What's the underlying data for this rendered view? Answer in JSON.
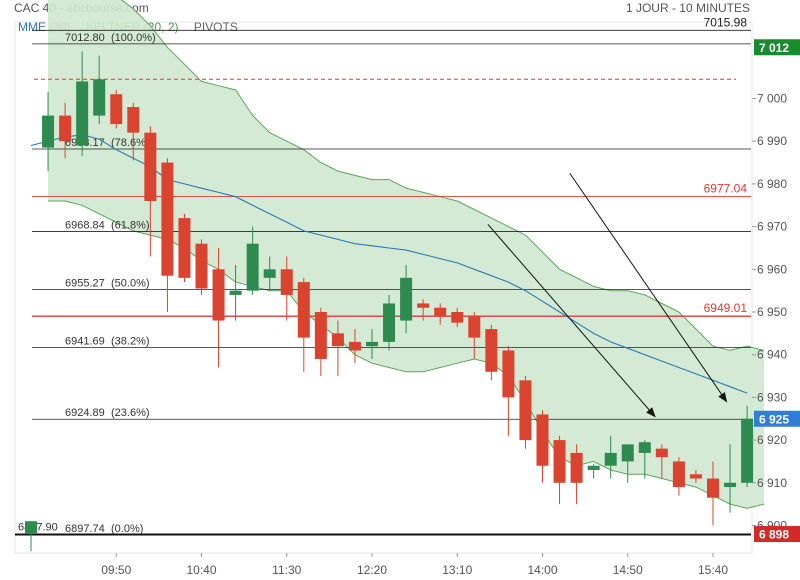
{
  "header": {
    "title": "CAC 40 - abcbourse.com",
    "period": "1 JOUR - 10 MINUTES"
  },
  "legend": {
    "mme": "MME (30)",
    "keltner": "KELTNER (20, 2)",
    "pivots": "PIVOTS"
  },
  "colors": {
    "up": "#2e8b4f",
    "down": "#d9432f",
    "keltner_fill": "#cfe8cf",
    "keltner_line": "#5aa55a",
    "mme_line": "#2b7bb0",
    "level_red": "#e03a3a",
    "badge_green": "#1a8a2e",
    "badge_blue": "#2f7fd6",
    "badge_red": "#d02a2a"
  },
  "chart_data": {
    "type": "candlestick",
    "x_tick_labels": [
      "09:50",
      "10:40",
      "11:30",
      "12:20",
      "13:10",
      "14:00",
      "14:50",
      "15:40"
    ],
    "y_ticks": [
      6900,
      6910,
      6920,
      6930,
      6940,
      6950,
      6960,
      6970,
      6980,
      6990,
      7000
    ],
    "y_tick_labels": [
      "6 900",
      "6 910",
      "6 920",
      "6 930",
      "6 940",
      "6 950",
      "6 960",
      "6 970",
      "6 980",
      "6 990",
      "7 000"
    ],
    "ylim": [
      6896,
      7020
    ],
    "candles": [
      {
        "o": 6898.2,
        "h": 6901.0,
        "l": 6894.0,
        "c": 6901.0
      },
      {
        "o": 6988.5,
        "h": 7001.5,
        "l": 6983.0,
        "c": 6996.0
      },
      {
        "o": 6996.0,
        "h": 6999.0,
        "l": 6986.0,
        "c": 6990.0
      },
      {
        "o": 6989.0,
        "h": 7011.0,
        "l": 6986.5,
        "c": 7004.0
      },
      {
        "o": 6996.0,
        "h": 7010.0,
        "l": 6994.0,
        "c": 7004.5
      },
      {
        "o": 7001.0,
        "h": 7002.0,
        "l": 6993.0,
        "c": 6994.0
      },
      {
        "o": 6998.0,
        "h": 6999.0,
        "l": 6985.5,
        "c": 6992.0
      },
      {
        "o": 6992.0,
        "h": 6993.5,
        "l": 6963.0,
        "c": 6976.0
      },
      {
        "o": 6985.0,
        "h": 6986.0,
        "l": 6950.0,
        "c": 6958.5
      },
      {
        "o": 6972.0,
        "h": 6973.0,
        "l": 6957.0,
        "c": 6958.0
      },
      {
        "o": 6966.0,
        "h": 6967.0,
        "l": 6954.0,
        "c": 6955.5
      },
      {
        "o": 6960.0,
        "h": 6965.0,
        "l": 6937.0,
        "c": 6948.0
      },
      {
        "o": 6954.0,
        "h": 6961.0,
        "l": 6948.0,
        "c": 6955.0
      },
      {
        "o": 6955.0,
        "h": 6970.0,
        "l": 6954.0,
        "c": 6966.0
      },
      {
        "o": 6958.0,
        "h": 6963.0,
        "l": 6955.0,
        "c": 6960.0
      },
      {
        "o": 6960.0,
        "h": 6963.0,
        "l": 6948.0,
        "c": 6954.0
      },
      {
        "o": 6957.0,
        "h": 6958.0,
        "l": 6936.0,
        "c": 6944.0
      },
      {
        "o": 6950.0,
        "h": 6951.0,
        "l": 6935.0,
        "c": 6939.0
      },
      {
        "o": 6945.0,
        "h": 6948.0,
        "l": 6935.0,
        "c": 6942.0
      },
      {
        "o": 6943.0,
        "h": 6946.0,
        "l": 6938.0,
        "c": 6941.0
      },
      {
        "o": 6942.0,
        "h": 6946.0,
        "l": 6939.0,
        "c": 6943.0
      },
      {
        "o": 6943.0,
        "h": 6954.0,
        "l": 6941.0,
        "c": 6952.0
      },
      {
        "o": 6948.0,
        "h": 6961.0,
        "l": 6945.0,
        "c": 6958.0
      },
      {
        "o": 6952.0,
        "h": 6953.0,
        "l": 6948.0,
        "c": 6951.0
      },
      {
        "o": 6951.0,
        "h": 6952.0,
        "l": 6947.0,
        "c": 6949.0
      },
      {
        "o": 6950.0,
        "h": 6951.0,
        "l": 6946.5,
        "c": 6947.5
      },
      {
        "o": 6949.0,
        "h": 6950.0,
        "l": 6939.0,
        "c": 6944.0
      },
      {
        "o": 6946.0,
        "h": 6947.0,
        "l": 6934.0,
        "c": 6936.0
      },
      {
        "o": 6941.0,
        "h": 6942.0,
        "l": 6921.0,
        "c": 6930.0
      },
      {
        "o": 6934.0,
        "h": 6935.0,
        "l": 6918.0,
        "c": 6920.0
      },
      {
        "o": 6926.0,
        "h": 6927.0,
        "l": 6910.0,
        "c": 6914.0
      },
      {
        "o": 6920.0,
        "h": 6921.0,
        "l": 6905.0,
        "c": 6910.0
      },
      {
        "o": 6917.0,
        "h": 6919.0,
        "l": 6905.0,
        "c": 6910.0
      },
      {
        "o": 6913.0,
        "h": 6914.5,
        "l": 6911.0,
        "c": 6914.0
      },
      {
        "o": 6914.0,
        "h": 6921.0,
        "l": 6911.0,
        "c": 6917.0
      },
      {
        "o": 6915.0,
        "h": 6918.0,
        "l": 6910.0,
        "c": 6919.0
      },
      {
        "o": 6917.0,
        "h": 6920.0,
        "l": 6911.0,
        "c": 6919.5
      },
      {
        "o": 6918.0,
        "h": 6919.0,
        "l": 6911.0,
        "c": 6916.0
      },
      {
        "o": 6915.0,
        "h": 6916.0,
        "l": 6907.0,
        "c": 6909.0
      },
      {
        "o": 6912.0,
        "h": 6913.0,
        "l": 6910.0,
        "c": 6911.0
      },
      {
        "o": 6911.0,
        "h": 6915.0,
        "l": 6900.0,
        "c": 6906.5
      },
      {
        "o": 6909.0,
        "h": 6919.0,
        "l": 6903.0,
        "c": 6910.0
      },
      {
        "o": 6910.0,
        "h": 6928.0,
        "l": 6909.0,
        "c": 6925.0
      }
    ],
    "keltner_upper": [
      7024,
      7027,
      7027,
      7026,
      7024,
      7021,
      7017,
      7012,
      7008,
      7004,
      7003,
      7002,
      6996,
      6992,
      6990,
      6988,
      6985,
      6983,
      6982,
      6981,
      6981,
      6979,
      6978,
      6977,
      6976,
      6974,
      6972,
      6970,
      6968,
      6964,
      6960,
      6958,
      6956,
      6955,
      6955,
      6954,
      6952,
      6950,
      6946,
      6942,
      6941,
      6942,
      6941
    ],
    "keltner_lower": [
      6976,
      6976,
      6975,
      6973,
      6971,
      6969,
      6968,
      6967,
      6965,
      6962,
      6960,
      6957,
      6956,
      6955,
      6955,
      6950,
      6947,
      6944,
      6940,
      6938,
      6937,
      6936,
      6936,
      6937,
      6938,
      6939,
      6938,
      6935,
      6929,
      6922,
      6916,
      6914,
      6915,
      6913,
      6912,
      6912,
      6911,
      6910,
      6909,
      6907,
      6905,
      6904,
      6905
    ],
    "mme": [
      6989,
      6990,
      6991,
      6991.5,
      6990.5,
      6988,
      6986,
      6984,
      6981,
      6980,
      6979,
      6978,
      6977,
      6975,
      6973,
      6971,
      6969,
      6968,
      6967,
      6966,
      6965.5,
      6965,
      6964.5,
      6963.5,
      6962.5,
      6961.5,
      6960,
      6958.5,
      6957,
      6955,
      6952.5,
      6950,
      6947.5,
      6945,
      6943,
      6941.5,
      6940,
      6938.5,
      6937,
      6935.5,
      6934,
      6932.5,
      6931
    ],
    "fib_levels": [
      {
        "value": 7012.8,
        "label": "7012.80",
        "pct": "(100.0%)"
      },
      {
        "value": 6988.17,
        "label": "6988.17",
        "pct": "(78.6%)"
      },
      {
        "value": 6968.84,
        "label": "6968.84",
        "pct": "(61.8%)"
      },
      {
        "value": 6955.27,
        "label": "6955.27",
        "pct": "(50.0%)"
      },
      {
        "value": 6941.69,
        "label": "6941.69",
        "pct": "(38.2%)"
      },
      {
        "value": 6924.89,
        "label": "6924.89",
        "pct": "(23.6%)"
      },
      {
        "value": 6897.74,
        "label": "6897.74",
        "pct": "(0.0%)"
      }
    ],
    "level_lines": [
      {
        "value": 7015.98,
        "label": "7015.98",
        "color": "#222222"
      },
      {
        "value": 6977.04,
        "label": "6977.04",
        "color": "#e03a3a"
      },
      {
        "value": 6949.01,
        "label": "6949.01",
        "color": "#e03a3a"
      }
    ],
    "dashed_level": 7004.5,
    "low_line": {
      "value": 6897.9,
      "label": "6897.90"
    },
    "badges": [
      {
        "value": 7012,
        "label": "7 012",
        "color": "#1a8a2e"
      },
      {
        "value": 6925,
        "label": "6 925",
        "color": "#2f7fd6"
      },
      {
        "value": 6898,
        "label": "6 898",
        "color": "#d02a2a"
      }
    ],
    "arrows": [
      {
        "from_idx": 26.8,
        "from_v": 6970.5,
        "to_idx": 36.6,
        "to_v": 6925.5
      },
      {
        "from_idx": 31.6,
        "from_v": 6982.5,
        "to_idx": 40.8,
        "to_v": 6929.0
      }
    ],
    "grid": false
  }
}
